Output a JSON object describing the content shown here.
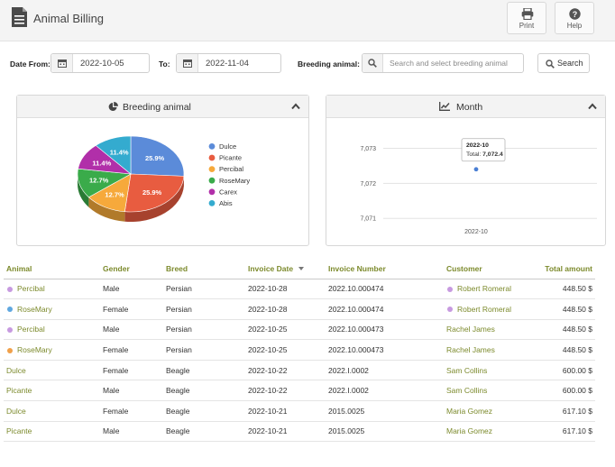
{
  "app": {
    "title": "Animal Billing"
  },
  "toolbar": {
    "print_label": "Print",
    "help_label": "Help"
  },
  "filters": {
    "date_from_label": "Date From:",
    "date_from_value": "2022-10-05",
    "to_label": "To:",
    "to_value": "2022-11-04",
    "breeding_label": "Breeding animal:",
    "search_placeholder": "Search and select breeding animal",
    "search_button": "Search"
  },
  "pie_panel": {
    "title": "Breeding animal",
    "chart_data": {
      "type": "pie",
      "legend_position": "right",
      "slices": [
        {
          "label": "Dulce",
          "value": 25.9,
          "display": "25.9%",
          "color": "#5b8bd9"
        },
        {
          "label": "Picante",
          "value": 25.9,
          "display": "25.9%",
          "color": "#e85c40"
        },
        {
          "label": "Percibal",
          "value": 12.7,
          "display": "12.7%",
          "color": "#f6a93b"
        },
        {
          "label": "RoseMary",
          "value": 12.7,
          "display": "12.7%",
          "color": "#3aab4a"
        },
        {
          "label": "Carex",
          "value": 11.4,
          "display": "11.4%",
          "color": "#b12fa9"
        },
        {
          "label": "Abis",
          "value": 11.4,
          "display": "11.4%",
          "color": "#34abcf"
        }
      ]
    }
  },
  "month_panel": {
    "title": "Month",
    "chart_data": {
      "type": "scatter",
      "x": [
        "2022-10"
      ],
      "y": [
        7072.4
      ],
      "ylim": [
        7070.8,
        7073.5
      ],
      "yticks": [
        "7,073",
        "7,072",
        "7,071"
      ],
      "grid": true,
      "tooltip": {
        "title": "2022-10",
        "label": "Total:",
        "value": "7,072.4"
      },
      "point_color": "#4a7fd4"
    }
  },
  "table": {
    "headers": {
      "animal": "Animal",
      "gender": "Gender",
      "breed": "Breed",
      "invoice_date": "Invoice Date",
      "invoice_number": "Invoice Number",
      "customer": "Customer",
      "total_amount": "Total amount"
    },
    "rows": [
      {
        "animal": "Percibal",
        "animal_dot": "#c79ae0",
        "gender": "Male",
        "breed": "Persian",
        "date": "2022-10-28",
        "number": "2022.10.000474",
        "customer": "Robert Romeral",
        "customer_dot": "#c79ae0",
        "amount": "448.50 $"
      },
      {
        "animal": "RoseMary",
        "animal_dot": "#5fa7e0",
        "gender": "Female",
        "breed": "Persian",
        "date": "2022-10-28",
        "number": "2022.10.000474",
        "customer": "Robert Romeral",
        "customer_dot": "#c79ae0",
        "amount": "448.50 $"
      },
      {
        "animal": "Percibal",
        "animal_dot": "#c79ae0",
        "gender": "Male",
        "breed": "Persian",
        "date": "2022-10-25",
        "number": "2022.10.000473",
        "customer": "Rachel James",
        "customer_dot": "",
        "amount": "448.50 $"
      },
      {
        "animal": "RoseMary",
        "animal_dot": "#f0a04a",
        "gender": "Female",
        "breed": "Persian",
        "date": "2022-10-25",
        "number": "2022.10.000473",
        "customer": "Rachel James",
        "customer_dot": "",
        "amount": "448.50 $"
      },
      {
        "animal": "Dulce",
        "animal_dot": "",
        "gender": "Female",
        "breed": "Beagle",
        "date": "2022-10-22",
        "number": "2022.I.0002",
        "customer": "Sam Collins",
        "customer_dot": "",
        "amount": "600.00 $"
      },
      {
        "animal": "Picante",
        "animal_dot": "",
        "gender": "Male",
        "breed": "Beagle",
        "date": "2022-10-22",
        "number": "2022.I.0002",
        "customer": "Sam Collins",
        "customer_dot": "",
        "amount": "600.00 $"
      },
      {
        "animal": "Dulce",
        "animal_dot": "",
        "gender": "Female",
        "breed": "Beagle",
        "date": "2022-10-21",
        "number": "2015.0025",
        "customer": "Maria Gomez",
        "customer_dot": "",
        "amount": "617.10 $"
      },
      {
        "animal": "Picante",
        "animal_dot": "",
        "gender": "Male",
        "breed": "Beagle",
        "date": "2022-10-21",
        "number": "2015.0025",
        "customer": "Maria Gomez",
        "customer_dot": "",
        "amount": "617.10 $"
      }
    ]
  }
}
